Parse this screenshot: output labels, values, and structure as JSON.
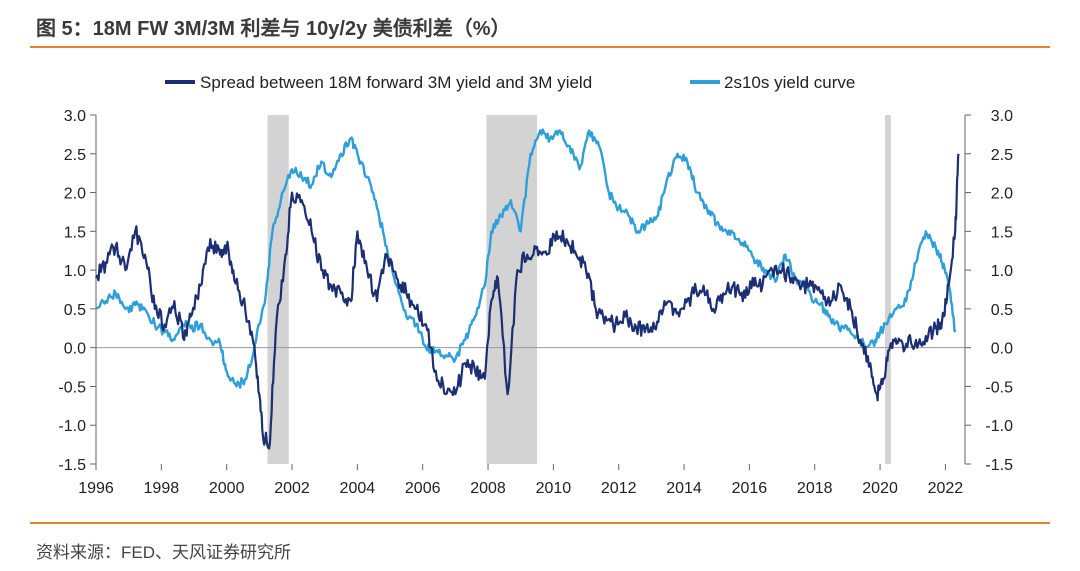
{
  "title": "图 5：18M FW 3M/3M 利差与 10y/2y 美债利差（%）",
  "source": "资料来源：FED、天风证券研究所",
  "colors": {
    "series1": "#1b2f72",
    "series2": "#2e9fd8",
    "recession": "#d3d3d3",
    "rule": "#e8822a",
    "zero": "#9a9a9a"
  },
  "chart_data": {
    "type": "line",
    "legend_position": "top",
    "grid": false,
    "xlim": [
      1996,
      2022.6
    ],
    "ylim": [
      -1.5,
      3.0
    ],
    "ylim_right": [
      -1.5,
      3.0
    ],
    "x_ticks": [
      "1996",
      "1998",
      "2000",
      "2002",
      "2004",
      "2006",
      "2008",
      "2010",
      "2012",
      "2014",
      "2016",
      "2018",
      "2020",
      "2022"
    ],
    "y_ticks_left": [
      "3.0",
      "2.5",
      "2.0",
      "1.5",
      "1.0",
      "0.5",
      "0.0",
      "-0.5",
      "-1.0",
      "-1.5"
    ],
    "y_ticks_right": [
      "3.0",
      "2.5",
      "2.0",
      "1.5",
      "1.0",
      "0.5",
      "0.0",
      "-0.5",
      "-1.0",
      "-1.5"
    ],
    "recessions": [
      [
        2001.25,
        2001.9
      ],
      [
        2007.95,
        2009.5
      ],
      [
        2020.15,
        2020.33
      ]
    ],
    "series": [
      {
        "name": "Spread between 18M forward 3M yield and 3M yield",
        "color": "#1b2f72",
        "x": [
          1996.0,
          1996.3,
          1996.6,
          1996.9,
          1997.2,
          1997.5,
          1997.8,
          1998.1,
          1998.4,
          1998.7,
          1998.9,
          1999.2,
          1999.5,
          1999.8,
          2000.0,
          2000.2,
          2000.5,
          2000.8,
          2001.0,
          2001.1,
          2001.3,
          2001.5,
          2001.8,
          2002.0,
          2002.3,
          2002.6,
          2002.9,
          2003.2,
          2003.5,
          2003.8,
          2004.0,
          2004.3,
          2004.6,
          2004.9,
          2005.2,
          2005.5,
          2005.8,
          2006.1,
          2006.4,
          2006.7,
          2007.0,
          2007.3,
          2007.6,
          2007.9,
          2008.1,
          2008.3,
          2008.6,
          2008.9,
          2009.2,
          2009.5,
          2009.8,
          2010.1,
          2010.4,
          2010.7,
          2011.0,
          2011.3,
          2011.6,
          2011.9,
          2012.2,
          2012.5,
          2012.8,
          2013.1,
          2013.4,
          2013.7,
          2014.0,
          2014.3,
          2014.6,
          2014.9,
          2015.2,
          2015.5,
          2015.8,
          2016.1,
          2016.4,
          2016.7,
          2017.0,
          2017.3,
          2017.6,
          2017.9,
          2018.2,
          2018.5,
          2018.8,
          2019.1,
          2019.4,
          2019.7,
          2019.9,
          2020.1,
          2020.3,
          2020.5,
          2020.8,
          2021.1,
          2021.4,
          2021.7,
          2021.9,
          2022.1,
          2022.3,
          2022.4
        ],
        "y": [
          0.9,
          1.1,
          1.3,
          1.0,
          1.5,
          1.2,
          0.5,
          0.3,
          0.6,
          0.1,
          0.4,
          0.8,
          1.4,
          1.2,
          1.3,
          1.0,
          0.6,
          0.1,
          -0.6,
          -1.1,
          -1.3,
          0.2,
          1.2,
          2.0,
          1.9,
          1.5,
          1.0,
          0.8,
          0.7,
          0.6,
          1.5,
          1.0,
          0.6,
          1.2,
          0.9,
          0.7,
          0.5,
          0.3,
          -0.3,
          -0.6,
          -0.6,
          -0.2,
          -0.3,
          -0.4,
          0.6,
          0.9,
          -0.6,
          1.0,
          1.2,
          1.3,
          1.2,
          1.5,
          1.4,
          1.2,
          1.0,
          0.5,
          0.4,
          0.3,
          0.4,
          0.3,
          0.2,
          0.25,
          0.6,
          0.5,
          0.5,
          0.7,
          0.8,
          0.5,
          0.7,
          0.8,
          0.6,
          0.9,
          0.8,
          1.0,
          1.0,
          0.9,
          0.8,
          0.8,
          0.7,
          0.6,
          0.8,
          0.5,
          0.1,
          -0.2,
          -0.6,
          -0.4,
          0.0,
          0.05,
          0.05,
          0.1,
          0.15,
          0.25,
          0.35,
          0.8,
          1.5,
          2.5
        ]
      },
      {
        "name": "2s10s yield curve",
        "color": "#2e9fd8",
        "x": [
          1996.0,
          1996.3,
          1996.6,
          1996.9,
          1997.2,
          1997.5,
          1997.8,
          1998.1,
          1998.4,
          1998.7,
          1998.9,
          1999.2,
          1999.5,
          1999.8,
          2000.0,
          2000.3,
          2000.6,
          2000.9,
          2001.2,
          2001.4,
          2001.7,
          2002.0,
          2002.3,
          2002.6,
          2002.9,
          2003.2,
          2003.5,
          2003.8,
          2004.0,
          2004.3,
          2004.6,
          2004.9,
          2005.2,
          2005.5,
          2005.8,
          2006.1,
          2006.4,
          2006.7,
          2007.0,
          2007.3,
          2007.6,
          2007.9,
          2008.1,
          2008.4,
          2008.7,
          2009.0,
          2009.3,
          2009.6,
          2009.9,
          2010.2,
          2010.5,
          2010.8,
          2011.1,
          2011.4,
          2011.7,
          2012.0,
          2012.3,
          2012.6,
          2012.9,
          2013.2,
          2013.5,
          2013.8,
          2014.1,
          2014.4,
          2014.7,
          2015.0,
          2015.3,
          2015.6,
          2015.9,
          2016.2,
          2016.5,
          2016.8,
          2017.1,
          2017.4,
          2017.7,
          2018.0,
          2018.3,
          2018.6,
          2018.9,
          2019.2,
          2019.5,
          2019.8,
          2020.0,
          2020.2,
          2020.5,
          2020.8,
          2021.1,
          2021.4,
          2021.7,
          2021.9,
          2022.1,
          2022.3
        ],
        "y": [
          0.5,
          0.6,
          0.7,
          0.5,
          0.55,
          0.5,
          0.3,
          0.2,
          0.1,
          0.3,
          0.25,
          0.3,
          0.1,
          0.05,
          -0.3,
          -0.5,
          -0.4,
          0.1,
          0.7,
          1.5,
          2.0,
          2.3,
          2.2,
          2.1,
          2.4,
          2.2,
          2.5,
          2.7,
          2.5,
          2.2,
          1.8,
          1.3,
          0.8,
          0.4,
          0.3,
          0.0,
          -0.05,
          -0.1,
          -0.15,
          0.1,
          0.4,
          0.8,
          1.5,
          1.7,
          1.9,
          1.5,
          2.5,
          2.8,
          2.7,
          2.8,
          2.6,
          2.3,
          2.8,
          2.6,
          2.0,
          1.8,
          1.7,
          1.5,
          1.6,
          1.7,
          2.2,
          2.5,
          2.4,
          2.0,
          1.8,
          1.6,
          1.5,
          1.4,
          1.3,
          1.1,
          1.0,
          0.85,
          1.2,
          0.9,
          0.8,
          0.6,
          0.5,
          0.3,
          0.25,
          0.15,
          0.05,
          0.05,
          0.2,
          0.3,
          0.5,
          0.6,
          1.1,
          1.5,
          1.3,
          1.1,
          0.8,
          0.2
        ]
      }
    ]
  }
}
